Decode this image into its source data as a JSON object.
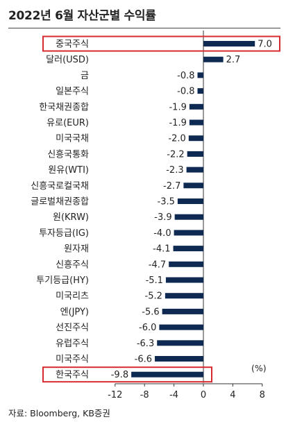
{
  "title": "2022년 6월 자산군별 수익률",
  "source": "자료: Bloomberg, KB증권",
  "chart_data": {
    "type": "bar",
    "orientation": "horizontal",
    "categories": [
      "중국주식",
      "달러(USD)",
      "금",
      "일본주식",
      "한국채권종합",
      "유로(EUR)",
      "미국국채",
      "신흥국통화",
      "원유(WTI)",
      "신흥국로컬국채",
      "글로벌채권종합",
      "원(KRW)",
      "투자등급(IG)",
      "원자재",
      "신흥주식",
      "투기등급(HY)",
      "미국리츠",
      "엔(JPY)",
      "선진주식",
      "유럽주식",
      "미국주식",
      "한국주식"
    ],
    "values": [
      7.0,
      2.7,
      -0.8,
      -0.8,
      -1.9,
      -1.9,
      -2.0,
      -2.2,
      -2.3,
      -2.7,
      -3.5,
      -3.9,
      -4.0,
      -4.1,
      -4.7,
      -5.1,
      -5.2,
      -5.6,
      -6.0,
      -6.3,
      -6.6,
      -9.8
    ],
    "value_labels": [
      "7.0",
      "2.7",
      "-0.8",
      "-0.8",
      "-1.9",
      "-1.9",
      "-2.0",
      "-2.2",
      "-2.3",
      "-2.7",
      "-3.5",
      "-3.9",
      "-4.0",
      "-4.1",
      "-4.7",
      "-5.1",
      "-5.2",
      "-5.6",
      "-6.0",
      "-6.3",
      "-6.6",
      "-9.8"
    ],
    "xlim": [
      -12,
      8
    ],
    "xticks": [
      "-12",
      "-8",
      "-4",
      "0",
      "4",
      "8"
    ],
    "xtick_values": [
      -12,
      -8,
      -4,
      0,
      4,
      8
    ],
    "unit": "(%)",
    "highlighted": [
      "중국주식",
      "한국주식"
    ],
    "colors": {
      "bar": "#0e2a52",
      "highlight_box": "#d62a2f"
    },
    "grid": false,
    "legend": "none"
  }
}
